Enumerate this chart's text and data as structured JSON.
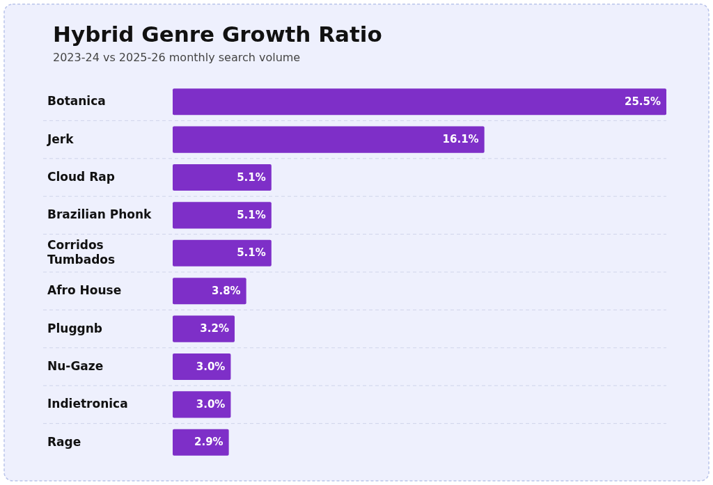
{
  "chart_data": {
    "type": "bar",
    "orientation": "horizontal",
    "title": "Hybrid Genre Growth Ratio",
    "subtitle": "2023-24 vs 2025-26 monthly search volume",
    "categories": [
      "Botanica",
      "Jerk",
      "Cloud Rap",
      "Brazilian Phonk",
      "Corridos Tumbados",
      "Afro House",
      "Pluggnb",
      "Nu-Gaze",
      "Indietronica",
      "Rage"
    ],
    "values": [
      25.5,
      16.1,
      5.1,
      5.1,
      5.1,
      3.8,
      3.2,
      3.0,
      3.0,
      2.9
    ],
    "value_labels": [
      "25.5%",
      "16.1%",
      "5.1%",
      "5.1%",
      "5.1%",
      "3.8%",
      "3.2%",
      "3.0%",
      "3.0%",
      "2.9%"
    ],
    "color": "#7e2fc8",
    "grid": "y"
  }
}
